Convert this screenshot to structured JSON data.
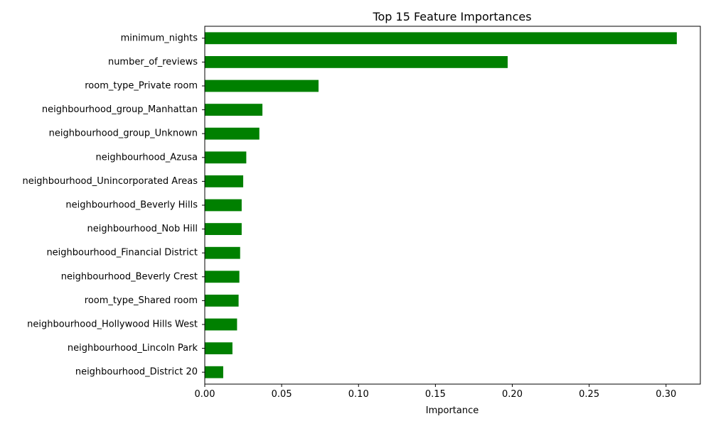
{
  "chart_data": {
    "type": "bar",
    "orientation": "horizontal",
    "title": "Top 15 Feature Importances",
    "xlabel": "Importance",
    "ylabel": "",
    "xlim": [
      0.0,
      0.3223
    ],
    "xticks": [
      "0.00",
      "0.05",
      "0.10",
      "0.15",
      "0.20",
      "0.25",
      "0.30"
    ],
    "xtick_values": [
      0.0,
      0.05,
      0.1,
      0.15,
      0.2,
      0.25,
      0.3
    ],
    "bar_color": "#008000",
    "grid": false,
    "categories": [
      "minimum_nights",
      "number_of_reviews",
      "room_type_Private room",
      "neighbourhood_group_Manhattan",
      "neighbourhood_group_Unknown",
      "neighbourhood_Azusa",
      "neighbourhood_Unincorporated Areas",
      "neighbourhood_Beverly Hills",
      "neighbourhood_Nob Hill",
      "neighbourhood_Financial District",
      "neighbourhood_Beverly Crest",
      "room_type_Shared room",
      "neighbourhood_Hollywood Hills West",
      "neighbourhood_Lincoln Park",
      "neighbourhood_District 20"
    ],
    "values": [
      0.307,
      0.197,
      0.074,
      0.0375,
      0.0355,
      0.027,
      0.025,
      0.024,
      0.024,
      0.023,
      0.0225,
      0.022,
      0.021,
      0.018,
      0.012
    ]
  }
}
